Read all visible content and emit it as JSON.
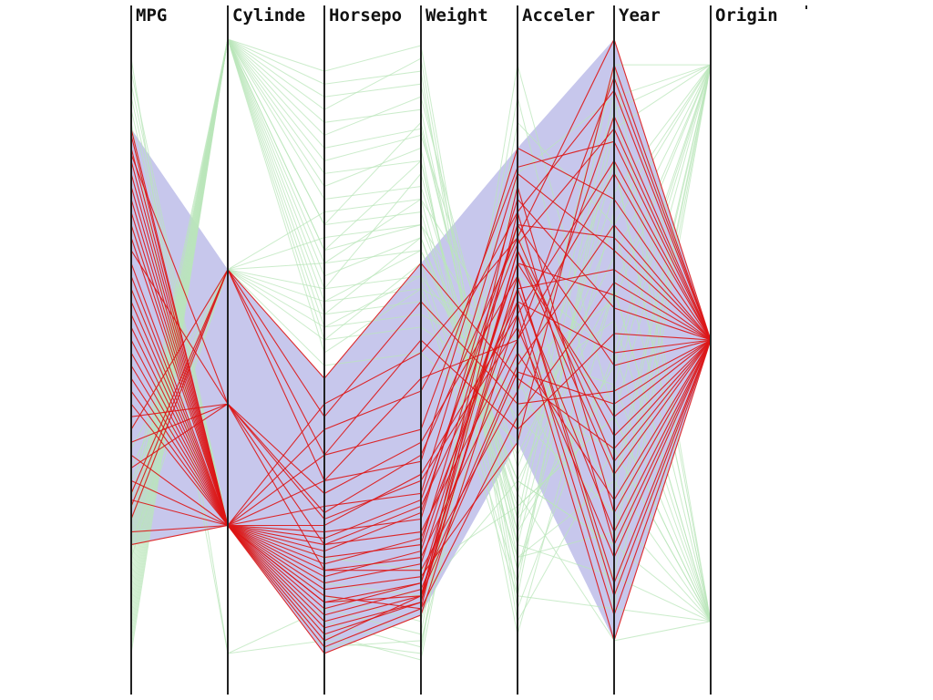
{
  "chart_data": {
    "type": "parallel-coordinates",
    "title": "",
    "axes": [
      "MPG",
      "Cylinde",
      "Horsepo",
      "Weight",
      "Acceler",
      "Year",
      "Origin"
    ],
    "value_scale": "normalized 0 (bottom) to 1 (top) per axis",
    "colors": {
      "axis": "#222222",
      "highlight": "#dd1515",
      "context": "#b9e6b9",
      "brush_band": "#b4b4e6"
    },
    "brush_band": {
      "top": [
        0.85,
        0.63,
        0.46,
        0.64,
        0.82,
        0.99,
        0.52
      ],
      "bottom": [
        0.2,
        0.23,
        0.03,
        0.09,
        0.36,
        0.05,
        0.52
      ]
    },
    "highlighted_series": [
      [
        0.85,
        0.23,
        0.03,
        0.09,
        0.56,
        0.05,
        0.52
      ],
      [
        0.82,
        0.23,
        0.06,
        0.11,
        0.62,
        0.14,
        0.52
      ],
      [
        0.8,
        0.23,
        0.08,
        0.12,
        0.6,
        0.22,
        0.52
      ],
      [
        0.76,
        0.23,
        0.11,
        0.14,
        0.66,
        0.31,
        0.52
      ],
      [
        0.72,
        0.23,
        0.14,
        0.17,
        0.64,
        0.4,
        0.52
      ],
      [
        0.68,
        0.23,
        0.18,
        0.2,
        0.7,
        0.48,
        0.52
      ],
      [
        0.64,
        0.23,
        0.22,
        0.24,
        0.74,
        0.57,
        0.52
      ],
      [
        0.6,
        0.23,
        0.26,
        0.28,
        0.78,
        0.66,
        0.52
      ],
      [
        0.56,
        0.23,
        0.3,
        0.33,
        0.82,
        0.74,
        0.52
      ],
      [
        0.52,
        0.23,
        0.34,
        0.38,
        0.79,
        0.83,
        0.52
      ],
      [
        0.48,
        0.23,
        0.38,
        0.44,
        0.72,
        0.91,
        0.52
      ],
      [
        0.44,
        0.23,
        0.42,
        0.5,
        0.68,
        0.99,
        0.52
      ],
      [
        0.4,
        0.42,
        0.2,
        0.26,
        0.58,
        0.09,
        0.52
      ],
      [
        0.36,
        0.42,
        0.24,
        0.3,
        0.54,
        0.18,
        0.52
      ],
      [
        0.32,
        0.42,
        0.16,
        0.18,
        0.5,
        0.27,
        0.52
      ],
      [
        0.28,
        0.63,
        0.46,
        0.64,
        0.46,
        0.35,
        0.52
      ],
      [
        0.26,
        0.63,
        0.4,
        0.58,
        0.42,
        0.44,
        0.52
      ],
      [
        0.24,
        0.63,
        0.34,
        0.52,
        0.38,
        0.53,
        0.52
      ],
      [
        0.22,
        0.23,
        0.12,
        0.1,
        0.4,
        0.61,
        0.52
      ],
      [
        0.2,
        0.23,
        0.09,
        0.13,
        0.48,
        0.7,
        0.52
      ],
      [
        0.78,
        0.23,
        0.2,
        0.22,
        0.52,
        0.78,
        0.52
      ],
      [
        0.74,
        0.23,
        0.16,
        0.16,
        0.44,
        0.87,
        0.52
      ],
      [
        0.7,
        0.23,
        0.13,
        0.15,
        0.36,
        0.95,
        0.52
      ],
      [
        0.66,
        0.42,
        0.28,
        0.36,
        0.62,
        0.12,
        0.52
      ],
      [
        0.62,
        0.23,
        0.07,
        0.11,
        0.76,
        0.25,
        0.52
      ],
      [
        0.58,
        0.23,
        0.05,
        0.12,
        0.66,
        0.37,
        0.52
      ],
      [
        0.54,
        0.23,
        0.1,
        0.14,
        0.58,
        0.5,
        0.52
      ],
      [
        0.5,
        0.23,
        0.15,
        0.19,
        0.64,
        0.59,
        0.52
      ],
      [
        0.46,
        0.23,
        0.19,
        0.25,
        0.7,
        0.68,
        0.52
      ],
      [
        0.42,
        0.23,
        0.23,
        0.31,
        0.56,
        0.8,
        0.52
      ],
      [
        0.38,
        0.63,
        0.3,
        0.46,
        0.52,
        0.93,
        0.52
      ],
      [
        0.34,
        0.23,
        0.11,
        0.12,
        0.47,
        0.42,
        0.52
      ],
      [
        0.3,
        0.23,
        0.17,
        0.21,
        0.6,
        0.63,
        0.52
      ],
      [
        0.27,
        0.23,
        0.21,
        0.27,
        0.67,
        0.85,
        0.52
      ],
      [
        0.84,
        0.23,
        0.04,
        0.1,
        0.72,
        0.2,
        0.52
      ],
      [
        0.81,
        0.42,
        0.25,
        0.34,
        0.68,
        0.33,
        0.52
      ]
    ],
    "context_series": [
      [
        0.1,
        0.99,
        0.9,
        0.92,
        0.2,
        0.15,
        0.95
      ],
      [
        0.12,
        0.99,
        0.86,
        0.88,
        0.18,
        0.3,
        0.95
      ],
      [
        0.14,
        0.99,
        0.82,
        0.85,
        0.24,
        0.45,
        0.95
      ],
      [
        0.08,
        0.99,
        0.78,
        0.8,
        0.16,
        0.6,
        0.95
      ],
      [
        0.16,
        0.99,
        0.74,
        0.76,
        0.28,
        0.75,
        0.95
      ],
      [
        0.18,
        0.99,
        0.7,
        0.72,
        0.22,
        0.9,
        0.95
      ],
      [
        0.2,
        0.99,
        0.66,
        0.7,
        0.3,
        0.2,
        0.95
      ],
      [
        0.22,
        0.99,
        0.62,
        0.68,
        0.26,
        0.4,
        0.95
      ],
      [
        0.11,
        0.99,
        0.58,
        0.66,
        0.34,
        0.65,
        0.95
      ],
      [
        0.13,
        0.99,
        0.54,
        0.62,
        0.14,
        0.85,
        0.95
      ],
      [
        0.06,
        0.99,
        0.5,
        0.6,
        0.12,
        0.1,
        0.95
      ],
      [
        0.04,
        0.99,
        0.88,
        0.96,
        0.1,
        0.5,
        0.95
      ],
      [
        0.09,
        0.99,
        0.84,
        0.9,
        0.32,
        0.7,
        0.95
      ],
      [
        0.15,
        0.99,
        0.8,
        0.84,
        0.38,
        0.95,
        0.95
      ],
      [
        0.24,
        0.63,
        0.56,
        0.58,
        0.4,
        0.25,
        0.08
      ],
      [
        0.26,
        0.63,
        0.52,
        0.54,
        0.44,
        0.55,
        0.08
      ],
      [
        0.28,
        0.63,
        0.48,
        0.5,
        0.36,
        0.8,
        0.08
      ],
      [
        0.3,
        0.63,
        0.6,
        0.62,
        0.42,
        0.35,
        0.08
      ],
      [
        0.32,
        0.63,
        0.64,
        0.66,
        0.3,
        0.6,
        0.08
      ],
      [
        0.18,
        0.63,
        0.68,
        0.7,
        0.46,
        0.15,
        0.08
      ],
      [
        0.2,
        0.63,
        0.72,
        0.74,
        0.5,
        0.45,
        0.08
      ],
      [
        0.86,
        0.03,
        0.1,
        0.06,
        0.9,
        0.3,
        0.08
      ],
      [
        0.9,
        0.23,
        0.08,
        0.04,
        0.86,
        0.7,
        0.08
      ],
      [
        0.88,
        0.23,
        0.06,
        0.02,
        0.78,
        0.9,
        0.08
      ],
      [
        0.92,
        0.23,
        0.12,
        0.08,
        0.7,
        0.1,
        0.08
      ],
      [
        0.94,
        0.23,
        0.04,
        0.05,
        0.62,
        0.5,
        0.08
      ],
      [
        0.7,
        0.23,
        0.14,
        0.12,
        0.3,
        0.2,
        0.08
      ],
      [
        0.6,
        0.23,
        0.18,
        0.16,
        0.26,
        0.4,
        0.08
      ],
      [
        0.05,
        0.99,
        0.92,
        0.94,
        0.08,
        0.35,
        0.08
      ],
      [
        0.07,
        0.99,
        0.76,
        0.82,
        0.06,
        0.6,
        0.08
      ],
      [
        0.17,
        0.99,
        0.64,
        0.74,
        0.2,
        0.8,
        0.08
      ],
      [
        0.19,
        0.99,
        0.6,
        0.78,
        0.24,
        0.95,
        0.08
      ],
      [
        0.23,
        0.99,
        0.56,
        0.68,
        0.28,
        0.05,
        0.08
      ],
      [
        0.25,
        0.99,
        0.52,
        0.64,
        0.18,
        0.22,
        0.95
      ],
      [
        0.27,
        0.99,
        0.7,
        0.86,
        0.22,
        0.48,
        0.95
      ],
      [
        0.21,
        0.99,
        0.66,
        0.8,
        0.16,
        0.72,
        0.95
      ],
      [
        0.03,
        0.99,
        0.94,
        0.98,
        0.12,
        0.88,
        0.95
      ],
      [
        0.35,
        0.63,
        0.58,
        0.6,
        0.52,
        0.28,
        0.95
      ],
      [
        0.38,
        0.63,
        0.54,
        0.56,
        0.48,
        0.58,
        0.95
      ],
      [
        0.96,
        0.03,
        0.05,
        0.03,
        0.95,
        0.4,
        0.08
      ]
    ]
  }
}
